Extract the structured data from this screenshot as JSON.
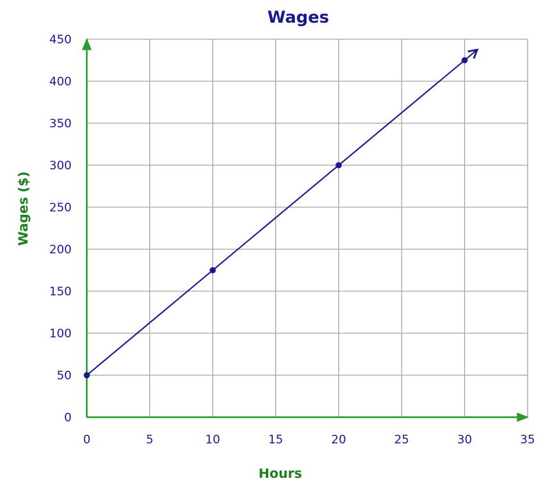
{
  "chart_data": {
    "type": "line",
    "title": "Wages",
    "xlabel": "Hours",
    "ylabel": "Wages ($)",
    "xlim": [
      0,
      35
    ],
    "ylim": [
      0,
      450
    ],
    "x_ticks": [
      0,
      5,
      10,
      15,
      20,
      25,
      30,
      35
    ],
    "y_ticks": [
      0,
      50,
      100,
      150,
      200,
      250,
      300,
      350,
      400,
      450
    ],
    "grid": true,
    "legend": "none",
    "series": [
      {
        "x": [
          0,
          10,
          20,
          30
        ],
        "y": [
          50,
          175,
          300,
          425
        ],
        "line_extends_with_arrow": true,
        "arrow_end": [
          31,
          437.5
        ]
      }
    ],
    "colors": {
      "series": "#1a1a8c",
      "title": "#1a1a8c",
      "tick_labels": "#1a1a8c",
      "axis_titles": "#1e7d1e",
      "axes": "#2e9a2e",
      "grid": "#a6a6a6"
    }
  }
}
